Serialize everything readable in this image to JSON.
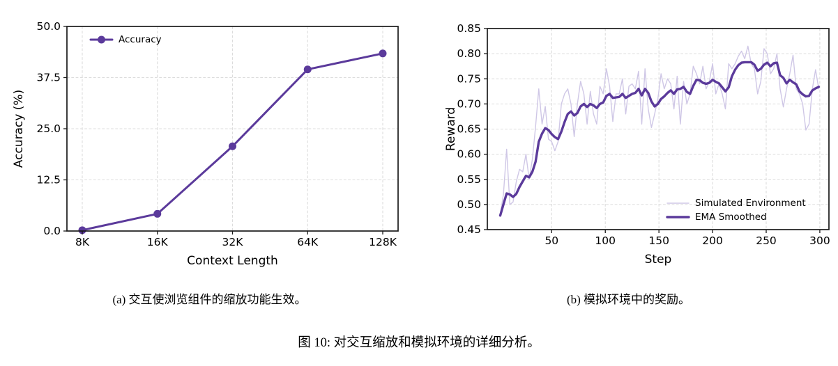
{
  "figure": {
    "subcaption_a": "(a) 交互使浏览组件的缩放功能生效。",
    "subcaption_b": "(b) 模拟环境中的奖励。",
    "caption": "图 10: 对交互缩放和模拟环境的详细分析。"
  },
  "colors": {
    "purple": "#5b3a9b",
    "lavender": "#cfc7e6",
    "grid": "#dcdcdc",
    "spine": "#1a1a1a",
    "text": "#000000",
    "background": "#ffffff"
  },
  "chart_data": [
    {
      "id": "accuracy-chart",
      "type": "line",
      "title": "",
      "xlabel": "Context Length",
      "ylabel": "Accuracy (%)",
      "categories": [
        "8K",
        "16K",
        "32K",
        "64K",
        "128K"
      ],
      "ylim": [
        0,
        50
      ],
      "yticks": [
        0,
        12.5,
        25,
        37.5,
        50
      ],
      "ytick_labels": [
        "0.0",
        "12.5",
        "25.0",
        "37.5",
        "50.0"
      ],
      "grid": true,
      "legend_position": "upper left",
      "series": [
        {
          "name": "Accuracy",
          "color": "purple",
          "line_width": 3,
          "marker": "circle",
          "values": [
            0.2,
            4.2,
            20.7,
            39.5,
            43.4
          ]
        }
      ]
    },
    {
      "id": "reward-chart",
      "type": "line",
      "title": "",
      "xlabel": "Step",
      "ylabel": "Reward",
      "xlim": [
        -10,
        308.5
      ],
      "ylim": [
        0.45,
        0.85
      ],
      "xticks": [
        50,
        100,
        150,
        200,
        250,
        300
      ],
      "xtick_labels": [
        "50",
        "100",
        "150",
        "200",
        "250",
        "300"
      ],
      "yticks": [
        0.45,
        0.5,
        0.55,
        0.6,
        0.65,
        0.7,
        0.75,
        0.8,
        0.85
      ],
      "ytick_labels": [
        "0.45",
        "0.50",
        "0.55",
        "0.60",
        "0.65",
        "0.70",
        "0.75",
        "0.80",
        "0.85"
      ],
      "grid": true,
      "legend_position": "lower right",
      "x": [
        2,
        5,
        8,
        11,
        14,
        17,
        20,
        23,
        26,
        29,
        32,
        35,
        38,
        41,
        44,
        47,
        50,
        53,
        56,
        59,
        62,
        65,
        68,
        71,
        74,
        77,
        80,
        83,
        86,
        89,
        92,
        95,
        98,
        101,
        104,
        107,
        110,
        113,
        116,
        119,
        122,
        125,
        128,
        131,
        134,
        137,
        140,
        143,
        146,
        149,
        152,
        155,
        158,
        161,
        164,
        167,
        170,
        173,
        176,
        179,
        182,
        185,
        188,
        191,
        194,
        197,
        200,
        203,
        206,
        209,
        212,
        215,
        218,
        221,
        224,
        227,
        230,
        233,
        236,
        239,
        242,
        245,
        248,
        251,
        254,
        257,
        260,
        263,
        266,
        269,
        272,
        275,
        278,
        281,
        284,
        287,
        290,
        293,
        296,
        299
      ],
      "series": [
        {
          "name": "Simulated Environment",
          "color": "lavender",
          "line_width": 1.4,
          "marker": "none",
          "values": [
            0.48,
            0.52,
            0.61,
            0.5,
            0.505,
            0.545,
            0.57,
            0.565,
            0.6,
            0.55,
            0.59,
            0.655,
            0.73,
            0.66,
            0.695,
            0.63,
            0.625,
            0.607,
            0.625,
            0.7,
            0.72,
            0.73,
            0.7,
            0.635,
            0.7,
            0.745,
            0.72,
            0.66,
            0.725,
            0.68,
            0.66,
            0.735,
            0.72,
            0.77,
            0.735,
            0.665,
            0.72,
            0.72,
            0.75,
            0.68,
            0.735,
            0.74,
            0.73,
            0.765,
            0.66,
            0.77,
            0.69,
            0.653,
            0.68,
            0.71,
            0.76,
            0.73,
            0.75,
            0.74,
            0.69,
            0.755,
            0.66,
            0.745,
            0.7,
            0.72,
            0.775,
            0.76,
            0.74,
            0.775,
            0.73,
            0.745,
            0.78,
            0.72,
            0.74,
            0.72,
            0.69,
            0.78,
            0.77,
            0.78,
            0.795,
            0.805,
            0.79,
            0.815,
            0.78,
            0.77,
            0.72,
            0.745,
            0.81,
            0.8,
            0.76,
            0.77,
            0.8,
            0.73,
            0.694,
            0.73,
            0.76,
            0.797,
            0.73,
            0.72,
            0.7,
            0.648,
            0.66,
            0.73,
            0.768,
            0.73
          ]
        },
        {
          "name": "EMA Smoothed",
          "color": "purple",
          "line_width": 3.4,
          "marker": "none",
          "values": [
            0.478,
            0.5,
            0.522,
            0.52,
            0.515,
            0.521,
            0.535,
            0.546,
            0.557,
            0.554,
            0.565,
            0.585,
            0.625,
            0.641,
            0.652,
            0.648,
            0.64,
            0.634,
            0.63,
            0.645,
            0.664,
            0.68,
            0.685,
            0.677,
            0.682,
            0.695,
            0.7,
            0.694,
            0.7,
            0.697,
            0.692,
            0.7,
            0.703,
            0.716,
            0.72,
            0.712,
            0.713,
            0.714,
            0.72,
            0.712,
            0.716,
            0.72,
            0.722,
            0.73,
            0.717,
            0.73,
            0.722,
            0.705,
            0.695,
            0.7,
            0.71,
            0.715,
            0.722,
            0.727,
            0.72,
            0.729,
            0.73,
            0.734,
            0.724,
            0.72,
            0.736,
            0.748,
            0.747,
            0.742,
            0.74,
            0.742,
            0.748,
            0.744,
            0.741,
            0.733,
            0.725,
            0.733,
            0.755,
            0.768,
            0.777,
            0.782,
            0.783,
            0.783,
            0.783,
            0.778,
            0.766,
            0.77,
            0.778,
            0.782,
            0.775,
            0.781,
            0.782,
            0.757,
            0.752,
            0.741,
            0.748,
            0.743,
            0.739,
            0.725,
            0.719,
            0.715,
            0.716,
            0.727,
            0.731,
            0.734
          ]
        }
      ]
    }
  ]
}
